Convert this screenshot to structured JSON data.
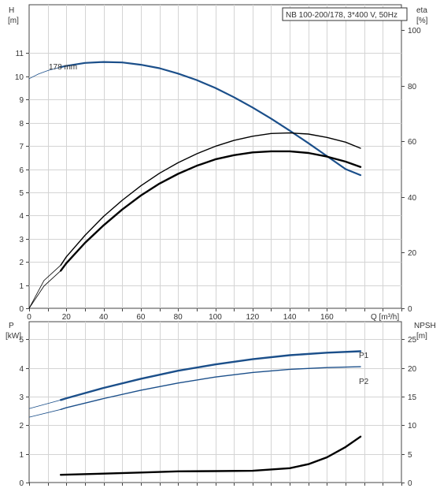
{
  "chart_data": [
    {
      "type": "line",
      "title": "NB 100-200/178, 3*400 V, 50Hz",
      "xlabel": "Q [m³/h]",
      "xlim": [
        0,
        200
      ],
      "x_ticks": [
        0,
        20,
        40,
        60,
        80,
        100,
        120,
        140,
        160
      ],
      "left_axis": {
        "label": "H",
        "unit": "[m]",
        "ylim": [
          0,
          12
        ],
        "ticks": [
          0,
          1,
          2,
          3,
          4,
          5,
          6,
          7,
          8,
          9,
          10,
          11
        ]
      },
      "right_axis": {
        "label": "eta",
        "unit": "[%]",
        "ylim": [
          0,
          100
        ],
        "ticks": [
          0,
          20,
          40,
          60,
          80,
          100
        ]
      },
      "annotation": "178 mm",
      "grid": true,
      "series": [
        {
          "id": "head",
          "axis": "left",
          "color": "#1b4f8a",
          "extrapolated_x": [
            0,
            5,
            10,
            17
          ],
          "extrapolated_y": [
            9.9,
            10.1,
            10.25,
            10.4
          ],
          "x": [
            17,
            20,
            30,
            40,
            50,
            60,
            70,
            80,
            90,
            100,
            110,
            120,
            130,
            140,
            150,
            160,
            170,
            178
          ],
          "y": [
            10.4,
            10.45,
            10.58,
            10.62,
            10.6,
            10.5,
            10.35,
            10.12,
            9.84,
            9.5,
            9.1,
            8.66,
            8.18,
            7.66,
            7.12,
            6.56,
            6.0,
            5.74
          ]
        },
        {
          "id": "eta-upper",
          "axis": "right",
          "color": "#000000",
          "extrapolated_x": [
            0,
            8,
            17
          ],
          "extrapolated_y": [
            0,
            10,
            15.5
          ],
          "x": [
            17,
            20,
            30,
            40,
            50,
            60,
            70,
            80,
            90,
            100,
            110,
            120,
            130,
            140,
            150,
            160,
            170,
            178
          ],
          "y": [
            15.5,
            18.5,
            26.2,
            33.0,
            38.8,
            44.0,
            48.5,
            52.3,
            55.5,
            58.2,
            60.3,
            61.8,
            62.8,
            63.0,
            62.6,
            61.4,
            59.7,
            57.5
          ]
        },
        {
          "id": "eta-lower",
          "axis": "right",
          "color": "#000000",
          "extrapolated_x": [
            0,
            8,
            17
          ],
          "extrapolated_y": [
            0,
            8,
            13.5
          ],
          "x": [
            17,
            20,
            30,
            40,
            50,
            60,
            70,
            80,
            90,
            100,
            110,
            120,
            130,
            140,
            150,
            160,
            170,
            178
          ],
          "y": [
            13.5,
            16.2,
            23.5,
            29.8,
            35.5,
            40.5,
            44.8,
            48.3,
            51.2,
            53.5,
            55.0,
            56.0,
            56.4,
            56.4,
            55.8,
            54.5,
            52.7,
            50.8
          ]
        }
      ]
    },
    {
      "type": "line",
      "xlabel": "",
      "xlim": [
        0,
        200
      ],
      "left_axis": {
        "label": "P",
        "unit": "[kW]",
        "ylim": [
          0,
          5.5
        ],
        "ticks": [
          0,
          1,
          2,
          3,
          4,
          5
        ]
      },
      "right_axis": {
        "label": "NPSH",
        "unit": "[m]",
        "ylim": [
          0,
          27.5
        ],
        "ticks": [
          0,
          5,
          10,
          15,
          20,
          25
        ]
      },
      "grid": true,
      "series": [
        {
          "id": "p1",
          "name": "P1",
          "axis": "left",
          "color": "#1b4f8a",
          "extrapolated_x": [
            0,
            17
          ],
          "extrapolated_y": [
            2.58,
            2.88
          ],
          "x": [
            17,
            20,
            40,
            60,
            80,
            100,
            120,
            140,
            160,
            178
          ],
          "y": [
            2.88,
            2.94,
            3.3,
            3.62,
            3.9,
            4.12,
            4.3,
            4.44,
            4.53,
            4.58
          ]
        },
        {
          "id": "p2",
          "name": "P2",
          "axis": "left",
          "color": "#1b4f8a",
          "extrapolated_x": [
            0,
            17
          ],
          "extrapolated_y": [
            2.28,
            2.55
          ],
          "x": [
            17,
            20,
            40,
            60,
            80,
            100,
            120,
            140,
            160,
            178
          ],
          "y": [
            2.55,
            2.61,
            2.93,
            3.22,
            3.47,
            3.68,
            3.84,
            3.95,
            4.01,
            4.04
          ]
        },
        {
          "id": "npsh",
          "axis": "right",
          "color": "#000000",
          "x": [
            17,
            40,
            60,
            80,
            100,
            120,
            140,
            150,
            160,
            170,
            178
          ],
          "y": [
            1.35,
            1.55,
            1.75,
            1.95,
            2.0,
            2.05,
            2.5,
            3.2,
            4.4,
            6.2,
            8.0
          ]
        }
      ]
    }
  ]
}
